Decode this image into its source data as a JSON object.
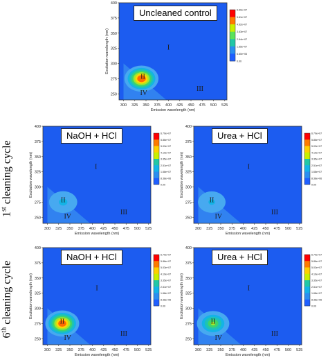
{
  "row_labels": [
    {
      "ordinal": "1",
      "suffix": "st",
      "text": " cleaning cycle"
    },
    {
      "ordinal": "6",
      "suffix": "th",
      "text": " cleaning cycle"
    }
  ],
  "chart_data": [
    {
      "type": "heatmap",
      "title": "Uncleaned control",
      "xlabel": "Emission wavelength (nm)",
      "ylabel": "Excitation wavelength (nm)",
      "xlim": [
        290,
        530
      ],
      "ylim": [
        240,
        400
      ],
      "xticks": [
        300,
        325,
        350,
        375,
        400,
        425,
        450,
        475,
        500,
        525
      ],
      "yticks": [
        250,
        275,
        300,
        325,
        350,
        375,
        400
      ],
      "colorbar_ticks": [
        "6.60e+07",
        "5.61e+07",
        "4.62e+07",
        "3.63e+07",
        "2.64e+07",
        "1.65e+07",
        "6.60e+06",
        "0.00"
      ],
      "peaks": [
        {
          "x": 340,
          "y": 275,
          "intensity": 1.0
        }
      ],
      "regions": [
        {
          "label": "I",
          "x": 400,
          "y": 323
        },
        {
          "label": "II",
          "x": 343,
          "y": 275
        },
        {
          "label": "III",
          "x": 470,
          "y": 255
        },
        {
          "label": "IV",
          "x": 345,
          "y": 248
        }
      ]
    },
    {
      "type": "heatmap",
      "title": "NaOH + HCl",
      "xlabel": "Emission wavelength (nm)",
      "ylabel": "Excitation wavelength (nm)",
      "xlim": [
        290,
        530
      ],
      "ylim": [
        240,
        400
      ],
      "xticks": [
        300,
        325,
        350,
        375,
        400,
        425,
        450,
        475,
        500,
        525
      ],
      "yticks": [
        250,
        275,
        300,
        325,
        350,
        375,
        400
      ],
      "colorbar_ticks": [
        "6.70e+07",
        "5.86e+07",
        "5.03e+07",
        "4.19e+07",
        "3.35e+07",
        "2.51e+07",
        "1.68e+07",
        "8.38e+06",
        "0.00"
      ],
      "peaks": [
        {
          "x": 335,
          "y": 275,
          "intensity": 0.3
        }
      ],
      "regions": [
        {
          "label": "I",
          "x": 408,
          "y": 330
        },
        {
          "label": "II",
          "x": 335,
          "y": 275
        },
        {
          "label": "III",
          "x": 470,
          "y": 255
        },
        {
          "label": "IV",
          "x": 345,
          "y": 248
        }
      ]
    },
    {
      "type": "heatmap",
      "title": "Urea + HCl",
      "xlabel": "Emission wavelength (nm)",
      "ylabel": "Excitation wavelength (nm)",
      "xlim": [
        290,
        530
      ],
      "ylim": [
        240,
        400
      ],
      "xticks": [
        300,
        325,
        350,
        375,
        400,
        425,
        450,
        475,
        500,
        525
      ],
      "yticks": [
        250,
        275,
        300,
        325,
        350,
        375,
        400
      ],
      "colorbar_ticks": [
        "6.70e+07",
        "5.86e+07",
        "5.03e+07",
        "4.19e+07",
        "3.35e+07",
        "2.51e+07",
        "1.68e+07",
        "8.38e+06",
        "0.00"
      ],
      "peaks": [
        {
          "x": 330,
          "y": 275,
          "intensity": 0.28
        }
      ],
      "regions": [
        {
          "label": "I",
          "x": 412,
          "y": 330
        },
        {
          "label": "II",
          "x": 330,
          "y": 275
        },
        {
          "label": "III",
          "x": 470,
          "y": 255
        },
        {
          "label": "IV",
          "x": 345,
          "y": 248
        }
      ]
    },
    {
      "type": "heatmap",
      "title": "NaOH + HCl",
      "xlabel": "Emission wavelength (nm)",
      "ylabel": "Excitation wavelength (nm)",
      "xlim": [
        290,
        530
      ],
      "ylim": [
        240,
        400
      ],
      "xticks": [
        300,
        325,
        350,
        375,
        400,
        425,
        450,
        475,
        500,
        525
      ],
      "yticks": [
        250,
        275,
        300,
        325,
        350,
        375,
        400
      ],
      "colorbar_ticks": [
        "6.70e+07",
        "5.86e+07",
        "5.03e+07",
        "4.19e+07",
        "3.35e+07",
        "2.51e+07",
        "1.68e+07",
        "8.38e+06",
        "0.00"
      ],
      "peaks": [
        {
          "x": 333,
          "y": 275,
          "intensity": 0.98
        }
      ],
      "regions": [
        {
          "label": "I",
          "x": 410,
          "y": 330
        },
        {
          "label": "II",
          "x": 333,
          "y": 275
        },
        {
          "label": "III",
          "x": 470,
          "y": 255
        },
        {
          "label": "IV",
          "x": 345,
          "y": 248
        }
      ]
    },
    {
      "type": "heatmap",
      "title": "Urea + HCl",
      "xlabel": "Emission wavelength (nm)",
      "ylabel": "Excitation wavelength (nm)",
      "xlim": [
        290,
        530
      ],
      "ylim": [
        240,
        400
      ],
      "xticks": [
        300,
        325,
        350,
        375,
        400,
        425,
        450,
        475,
        500,
        525
      ],
      "yticks": [
        250,
        275,
        300,
        325,
        350,
        375,
        400
      ],
      "colorbar_ticks": [
        "6.70e+07",
        "5.86e+07",
        "5.03e+07",
        "4.19e+07",
        "3.35e+07",
        "2.51e+07",
        "1.68e+07",
        "8.38e+06",
        "0.00"
      ],
      "peaks": [
        {
          "x": 333,
          "y": 275,
          "intensity": 0.62
        }
      ],
      "regions": [
        {
          "label": "I",
          "x": 412,
          "y": 330
        },
        {
          "label": "II",
          "x": 333,
          "y": 275
        },
        {
          "label": "III",
          "x": 470,
          "y": 255
        },
        {
          "label": "IV",
          "x": 345,
          "y": 248
        }
      ]
    }
  ]
}
